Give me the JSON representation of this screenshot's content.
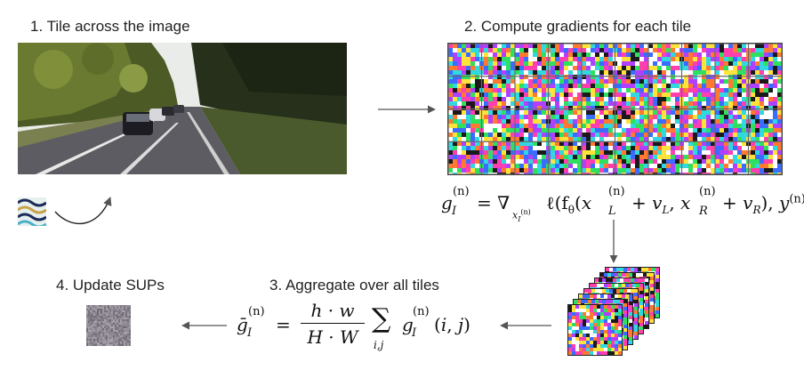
{
  "steps": {
    "step1": "1. Tile across the image",
    "step2": "2. Compute gradients for each tile",
    "step3": "3. Aggregate over all tiles",
    "step4": "4. Update SUPs"
  },
  "formulas": {
    "gradient": {
      "lhs": "g",
      "sub": "I",
      "sup": "(n)",
      "op": "= ∇",
      "rest": "ℓ(f",
      "theta": "θ"
    },
    "aggregate": {
      "lhs": "ḡ",
      "numerator": "h · w",
      "denominator": "H · W",
      "sum": "∑",
      "sum_index": "i,j"
    }
  },
  "colors": {
    "arrow": "#555555",
    "road": "#5a5a60",
    "tree_dark": "#2f3a1c",
    "sky": "#f2f4f2"
  },
  "icons": {
    "pattern_tile": "sup-pattern-icon",
    "curved_arrow": "curved-arrow-icon"
  }
}
